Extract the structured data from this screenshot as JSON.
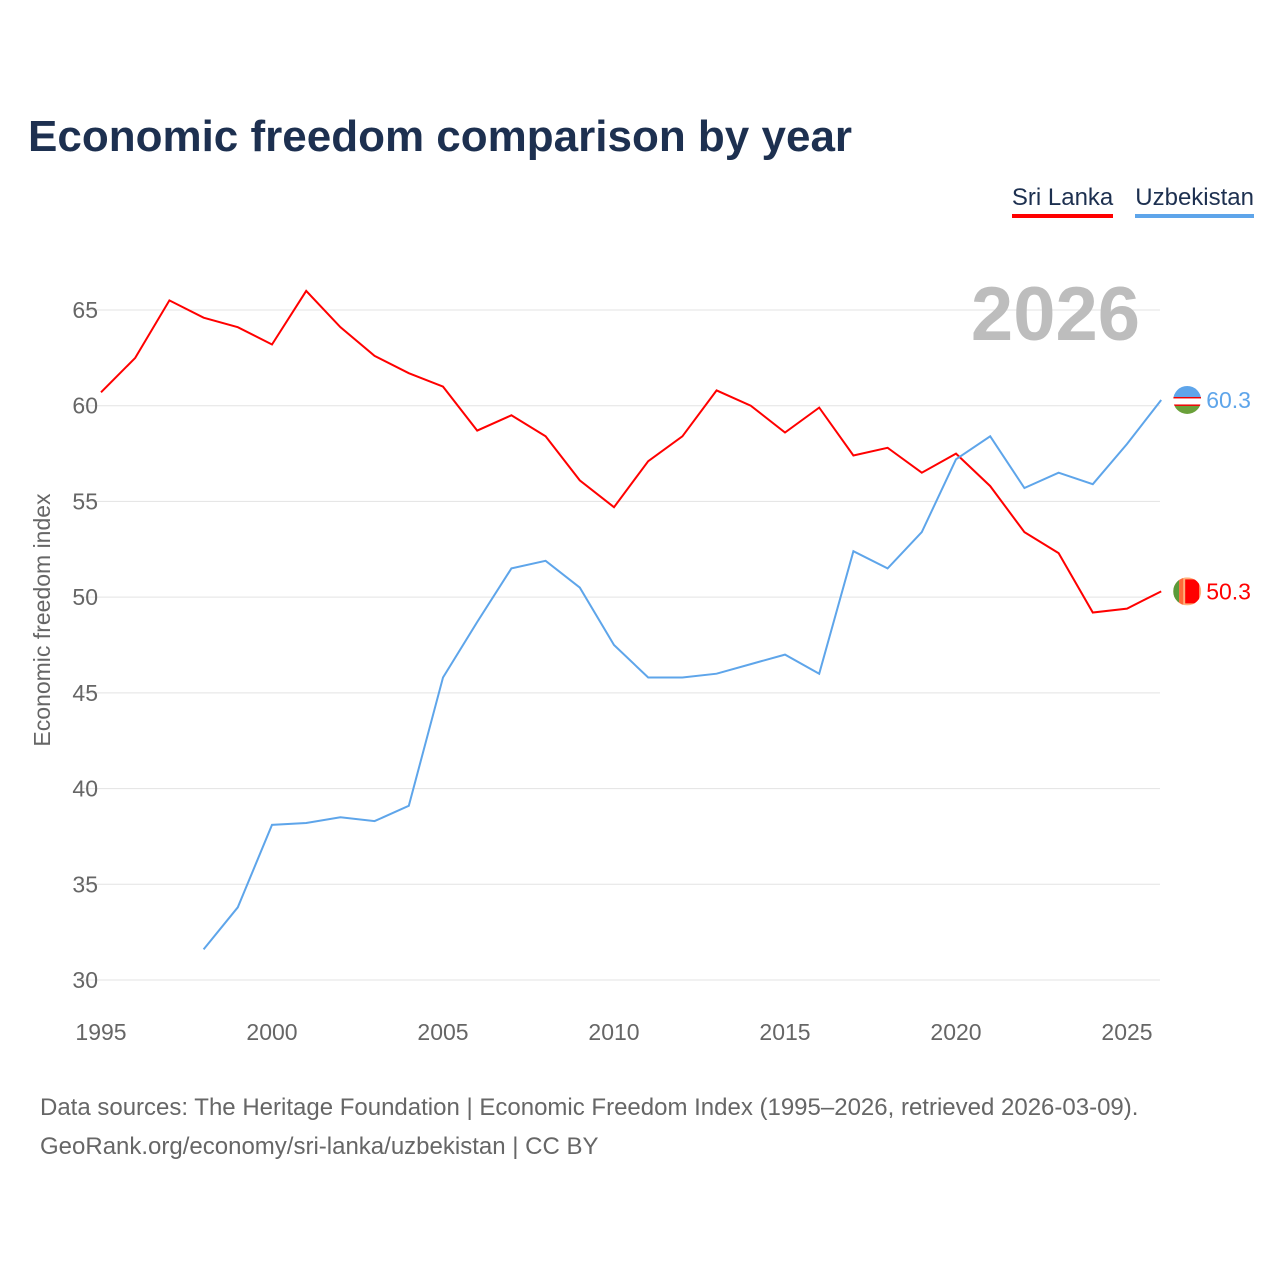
{
  "title": "Economic freedom comparison by year",
  "legend": [
    {
      "name": "Sri Lanka",
      "color": "#ff0000"
    },
    {
      "name": "Uzbekistan",
      "color": "#5ea5ea"
    }
  ],
  "footer": {
    "line1": "Data sources: The Heritage Foundation | Economic Freedom Index (1995–2026, retrieved 2026-03-09).",
    "line2": "GeoRank.org/economy/sri-lanka/uzbekistan | CC BY"
  },
  "chart_data": {
    "type": "line",
    "title": "Economic freedom comparison by year",
    "ylabel": "Economic freedom index",
    "xlabel": "",
    "xlim": [
      1995,
      2026
    ],
    "ylim": [
      30,
      67
    ],
    "xticks": [
      1995,
      2000,
      2005,
      2010,
      2015,
      2020,
      2025
    ],
    "yticks": [
      30,
      35,
      40,
      45,
      50,
      55,
      60,
      65
    ],
    "grid": true,
    "year_label": "2026",
    "series": [
      {
        "name": "Sri Lanka",
        "color": "#ff0000",
        "end_label": "50.3",
        "x": [
          1995,
          1996,
          1997,
          1998,
          1999,
          2000,
          2001,
          2002,
          2003,
          2004,
          2005,
          2006,
          2007,
          2008,
          2009,
          2010,
          2011,
          2012,
          2013,
          2014,
          2015,
          2016,
          2017,
          2018,
          2019,
          2020,
          2021,
          2022,
          2023,
          2024,
          2025,
          2026
        ],
        "values": [
          60.7,
          62.5,
          65.5,
          64.6,
          64.1,
          63.2,
          66.0,
          64.1,
          62.6,
          61.7,
          61.0,
          58.7,
          59.5,
          58.4,
          56.1,
          54.7,
          57.1,
          58.4,
          60.8,
          60.0,
          58.6,
          59.9,
          57.4,
          57.8,
          56.5,
          57.5,
          55.8,
          53.4,
          52.3,
          49.2,
          49.4,
          50.3
        ]
      },
      {
        "name": "Uzbekistan",
        "color": "#5ea5ea",
        "end_label": "60.3",
        "x": [
          1998,
          1999,
          2000,
          2001,
          2002,
          2003,
          2004,
          2005,
          2006,
          2007,
          2008,
          2009,
          2010,
          2011,
          2012,
          2013,
          2014,
          2015,
          2016,
          2017,
          2018,
          2019,
          2020,
          2021,
          2022,
          2023,
          2024,
          2025,
          2026
        ],
        "values": [
          31.6,
          33.8,
          38.1,
          38.2,
          38.5,
          38.3,
          39.1,
          45.8,
          48.7,
          51.5,
          51.9,
          50.5,
          47.5,
          45.8,
          45.8,
          46.0,
          46.5,
          47.0,
          46.0,
          52.4,
          51.5,
          53.4,
          57.2,
          58.4,
          55.7,
          56.5,
          55.9,
          58.0,
          60.3
        ]
      }
    ]
  }
}
